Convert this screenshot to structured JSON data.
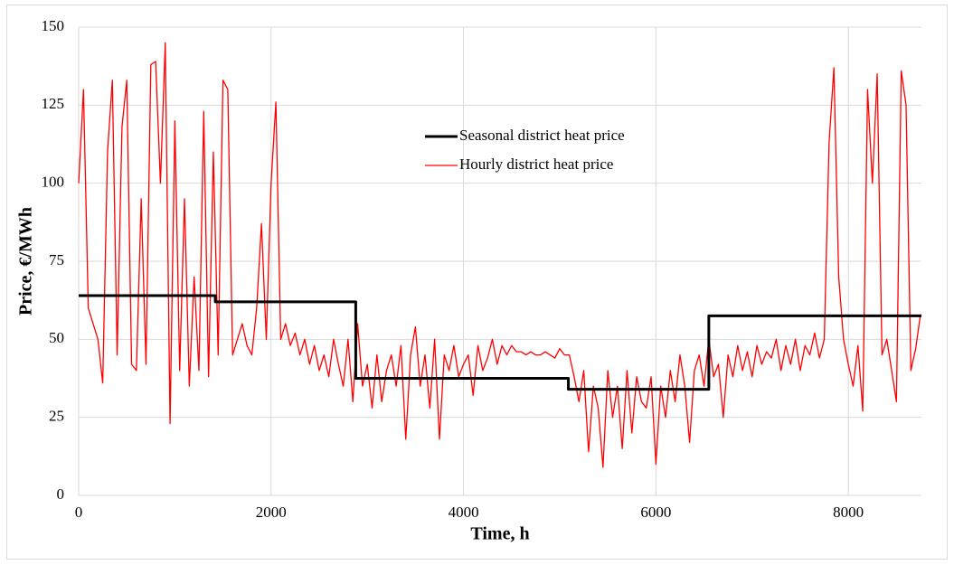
{
  "chart_data": {
    "type": "line",
    "x_label": "Time, h",
    "y_label": "Price, €/MWh",
    "xlim": [
      0,
      8760
    ],
    "xticks": [
      0,
      2000,
      4000,
      6000,
      8000
    ],
    "ylim": [
      0,
      150
    ],
    "yticks": [
      0,
      25,
      50,
      75,
      100,
      125,
      150
    ],
    "grid": true,
    "legend": "top-center",
    "series": [
      {
        "name": "Seasonal district heat price",
        "color": "#000000",
        "x": [
          0,
          1420,
          1420,
          2880,
          2880,
          5090,
          5090,
          6550,
          6550,
          8760
        ],
        "values": [
          64,
          64,
          62,
          62,
          37.5,
          37.5,
          34,
          34,
          57.5,
          57.5
        ]
      },
      {
        "name": "Hourly district heat price",
        "color": "#ff0000",
        "x": [
          0,
          50,
          100,
          150,
          200,
          250,
          300,
          350,
          400,
          450,
          500,
          550,
          600,
          650,
          700,
          750,
          800,
          850,
          900,
          950,
          1000,
          1050,
          1100,
          1150,
          1200,
          1250,
          1300,
          1350,
          1400,
          1450,
          1500,
          1550,
          1600,
          1650,
          1700,
          1750,
          1800,
          1850,
          1900,
          1950,
          2000,
          2050,
          2100,
          2150,
          2200,
          2250,
          2300,
          2350,
          2400,
          2450,
          2500,
          2550,
          2600,
          2650,
          2700,
          2750,
          2800,
          2850,
          2900,
          2950,
          3000,
          3050,
          3100,
          3150,
          3200,
          3250,
          3300,
          3350,
          3400,
          3450,
          3500,
          3550,
          3600,
          3650,
          3700,
          3750,
          3800,
          3850,
          3900,
          3950,
          4000,
          4050,
          4100,
          4150,
          4200,
          4250,
          4300,
          4350,
          4400,
          4450,
          4500,
          4550,
          4600,
          4650,
          4700,
          4750,
          4800,
          4850,
          4900,
          4950,
          5000,
          5050,
          5100,
          5150,
          5200,
          5250,
          5300,
          5350,
          5400,
          5450,
          5500,
          5550,
          5600,
          5650,
          5700,
          5750,
          5800,
          5850,
          5900,
          5950,
          6000,
          6050,
          6100,
          6150,
          6200,
          6250,
          6300,
          6350,
          6400,
          6450,
          6500,
          6550,
          6600,
          6650,
          6700,
          6750,
          6800,
          6850,
          6900,
          6950,
          7000,
          7050,
          7100,
          7150,
          7200,
          7250,
          7300,
          7350,
          7400,
          7450,
          7500,
          7550,
          7600,
          7650,
          7700,
          7750,
          7800,
          7850,
          7900,
          7950,
          8000,
          8050,
          8100,
          8150,
          8200,
          8250,
          8300,
          8350,
          8400,
          8450,
          8500,
          8550,
          8600,
          8650,
          8700,
          8750
        ],
        "values": [
          100,
          130,
          60,
          55,
          50,
          36,
          110,
          133,
          45,
          118,
          133,
          42,
          40,
          95,
          42,
          138,
          139,
          100,
          145,
          23,
          120,
          40,
          95,
          35,
          70,
          40,
          123,
          38,
          110,
          45,
          133,
          130,
          45,
          50,
          55,
          48,
          45,
          60,
          87,
          50,
          100,
          126,
          50,
          55,
          48,
          52,
          45,
          50,
          42,
          48,
          40,
          45,
          38,
          50,
          42,
          35,
          50,
          30,
          55,
          35,
          42,
          28,
          45,
          30,
          40,
          45,
          35,
          48,
          18,
          45,
          54,
          35,
          45,
          28,
          50,
          18,
          45,
          40,
          48,
          38,
          42,
          45,
          32,
          48,
          40,
          44,
          50,
          42,
          48,
          45,
          48,
          46,
          46,
          45,
          46,
          45,
          45,
          46,
          45,
          44,
          47,
          45,
          45,
          38,
          30,
          40,
          14,
          35,
          28,
          9,
          40,
          25,
          35,
          15,
          40,
          20,
          38,
          30,
          28,
          38,
          10,
          35,
          25,
          40,
          30,
          45,
          35,
          17,
          40,
          45,
          35,
          50,
          38,
          42,
          25,
          45,
          38,
          48,
          40,
          46,
          38,
          48,
          42,
          46,
          44,
          50,
          40,
          48,
          42,
          50,
          40,
          48,
          45,
          52,
          44,
          50,
          113,
          137,
          70,
          50,
          42,
          35,
          48,
          27,
          130,
          100,
          135,
          45,
          50,
          40,
          30,
          136,
          125,
          40,
          47,
          58
        ]
      }
    ]
  }
}
